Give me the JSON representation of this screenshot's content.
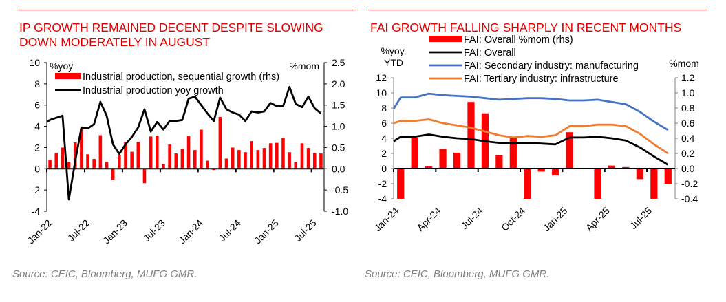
{
  "chart_data": [
    {
      "type": "bar+line",
      "title": "IP GROWTH REMAINED DECENT DESPITE SLOWING DOWN MODERATELY IN AUGUST",
      "title_lines": [
        "IP GROWTH REMAINED DECENT DESPITE SLOWING",
        "DOWN MODERATELY IN AUGUST"
      ],
      "ylabel_left": "%yoy",
      "ylabel_right": "%mom",
      "ylim_left": [
        -4,
        10
      ],
      "yticks_left": [
        -4,
        -2,
        0,
        2,
        4,
        6,
        8,
        10
      ],
      "ytick_labels_left": [
        "-4",
        "-2",
        "0",
        "2",
        "4",
        "6",
        "8",
        "10"
      ],
      "ylim_right": [
        -1.0,
        2.5
      ],
      "yticks_right": [
        -1.0,
        -0.5,
        0.0,
        0.5,
        1.0,
        1.5,
        2.0,
        2.5
      ],
      "ytick_labels_right": [
        "-1.0",
        "-0.5",
        "0.0",
        "0.5",
        "1.0",
        "1.5",
        "2.0",
        "2.5"
      ],
      "categories": [
        "Jan-22",
        "Feb-22",
        "Mar-22",
        "Apr-22",
        "May-22",
        "Jun-22",
        "Jul-22",
        "Aug-22",
        "Sep-22",
        "Oct-22",
        "Nov-22",
        "Dec-22",
        "Jan-23",
        "Feb-23",
        "Mar-23",
        "Apr-23",
        "May-23",
        "Jun-23",
        "Jul-23",
        "Aug-23",
        "Sep-23",
        "Oct-23",
        "Nov-23",
        "Dec-23",
        "Jan-24",
        "Feb-24",
        "Mar-24",
        "Apr-24",
        "May-24",
        "Jun-24",
        "Jul-24",
        "Aug-24",
        "Sep-24",
        "Oct-24",
        "Nov-24",
        "Dec-24",
        "Jan-25",
        "Feb-25",
        "Mar-25",
        "Apr-25",
        "May-25",
        "Jun-25",
        "Jul-25",
        "Aug-25"
      ],
      "xtick_labels": [
        "Jan-22",
        "Jul-22",
        "Jan-23",
        "Jul-23",
        "Jan-24",
        "Jul-24",
        "Jan-25",
        "Jul-25"
      ],
      "xtick_every": 6,
      "legend": "top-left",
      "series": [
        {
          "name": "Industrial production, sequential growth (rhs)",
          "kind": "bar",
          "axis": "right",
          "color": "#ff0000",
          "values": [
            0.21,
            0.37,
            0.5,
            0.15,
            0.62,
            0.95,
            0.34,
            0.23,
            0.79,
            0.16,
            -0.26,
            0.32,
            0.63,
            0.4,
            0.63,
            -0.34,
            0.76,
            0.78,
            0.11,
            0.57,
            0.36,
            0.47,
            0.78,
            0.44,
            0.92,
            0.19,
            -0.03,
            1.22,
            0.24,
            0.5,
            0.44,
            0.39,
            0.65,
            0.44,
            0.49,
            0.6,
            0.61,
            0.73,
            0.39,
            0.16,
            0.6,
            0.49,
            0.37,
            0.36
          ]
        },
        {
          "name": "Industrial production yoy growth",
          "kind": "line",
          "axis": "left",
          "color": "#000000",
          "lead_value": 4.4,
          "values": [
            4.6,
            4.8,
            5.0,
            -2.9,
            0.7,
            3.9,
            3.8,
            4.2,
            6.3,
            5.0,
            2.3,
            1.4,
            2.3,
            3.0,
            3.9,
            5.6,
            3.5,
            4.4,
            3.7,
            4.5,
            4.5,
            4.6,
            6.6,
            6.8,
            6.0,
            5.2,
            4.5,
            6.7,
            5.6,
            5.3,
            5.1,
            4.5,
            5.4,
            5.3,
            5.4,
            6.2,
            5.9,
            5.9,
            7.7,
            6.1,
            5.8,
            6.8,
            5.7,
            5.2
          ]
        }
      ]
    },
    {
      "type": "bar+line",
      "title": "FAI GROWTH FALLING SHARPLY IN RECENT MONTHS",
      "ylabel_left": [
        "%yoy,",
        "YTD"
      ],
      "ylabel_right": "%mom",
      "ylim_left": [
        -4,
        12
      ],
      "yticks_left": [
        -4,
        -2,
        0,
        2,
        4,
        6,
        8,
        10,
        12
      ],
      "ytick_labels_left": [
        "-4",
        "-2",
        "0",
        "2",
        "4",
        "6",
        "8",
        "10",
        "12"
      ],
      "ylim_right": [
        -0.4,
        1.2
      ],
      "yticks_right": [
        -0.4,
        -0.2,
        0.0,
        0.2,
        0.4,
        0.6,
        0.8,
        1.0,
        1.2
      ],
      "ytick_labels_right": [
        "-0.4",
        "-0.2",
        "0.0",
        "0.2",
        "0.4",
        "0.6",
        "0.8",
        "1.0",
        "1.2"
      ],
      "categories": [
        "Jan-24",
        "Feb-24",
        "Mar-24",
        "Apr-24",
        "May-24",
        "Jun-24",
        "Jul-24",
        "Aug-24",
        "Sep-24",
        "Oct-24",
        "Nov-24",
        "Dec-24",
        "Jan-25",
        "Feb-25",
        "Mar-25",
        "Apr-25",
        "May-25",
        "Jun-25",
        "Jul-25",
        "Aug-25"
      ],
      "xtick_labels": [
        "Jan-24",
        "Apr-24",
        "Jul-24",
        "Oct-24",
        "Jan-25",
        "Apr-25",
        "Jul-25"
      ],
      "xtick_every": 3,
      "legend": "top",
      "series": [
        {
          "name": "FAI: Overall %mom (rhs)",
          "kind": "bar",
          "axis": "right",
          "color": "#ff0000",
          "values": [
            -0.4,
            0.41,
            0.03,
            0.26,
            0.21,
            0.88,
            0.73,
            0.18,
            0.41,
            -0.4,
            -0.04,
            -0.09,
            0.48,
            0.0,
            -0.4,
            0.04,
            0.02,
            -0.14,
            -0.4,
            -0.2
          ]
        },
        {
          "name": "FAI: Overall",
          "kind": "line",
          "axis": "left",
          "color": "#000000",
          "lead_value": 3.6,
          "values": [
            4.2,
            4.2,
            4.5,
            4.2,
            4.0,
            3.9,
            3.6,
            3.4,
            3.4,
            3.4,
            3.3,
            3.2,
            4.1,
            4.1,
            4.2,
            4.0,
            3.7,
            2.8,
            1.6,
            0.5
          ]
        },
        {
          "name": "FAI: Secondary industry: manufacturing",
          "kind": "line",
          "axis": "left",
          "color": "#4472c4",
          "lead_value": 7.9,
          "values": [
            9.4,
            9.4,
            9.9,
            9.7,
            9.6,
            9.5,
            9.3,
            9.1,
            9.2,
            9.3,
            9.3,
            9.2,
            9.0,
            9.0,
            9.1,
            8.8,
            8.5,
            7.5,
            6.2,
            5.1
          ]
        },
        {
          "name": "FAI: Tertiary industry: infrastructure",
          "kind": "line",
          "axis": "left",
          "color": "#ed7d31",
          "lead_value": 6.0,
          "values": [
            6.3,
            6.3,
            6.5,
            6.0,
            5.7,
            5.4,
            4.9,
            4.4,
            4.1,
            4.3,
            4.2,
            4.4,
            5.6,
            5.6,
            5.8,
            5.8,
            5.6,
            4.6,
            3.2,
            2.0
          ]
        }
      ]
    }
  ],
  "left_panel": {
    "title_line1": "IP GROWTH REMAINED DECENT DESPITE SLOWING",
    "title_line2": "DOWN MODERATELY IN AUGUST",
    "source": "Source: CEIC, Bloomberg, MUFG GMR."
  },
  "right_panel": {
    "title": "FAI GROWTH FALLING SHARPLY IN RECENT MONTHS",
    "source": "Source: CEIC, Bloomberg, MUFG GMR."
  },
  "colors": {
    "accent": "#e00000",
    "bar": "#ff0000",
    "source_text": "#808080"
  }
}
